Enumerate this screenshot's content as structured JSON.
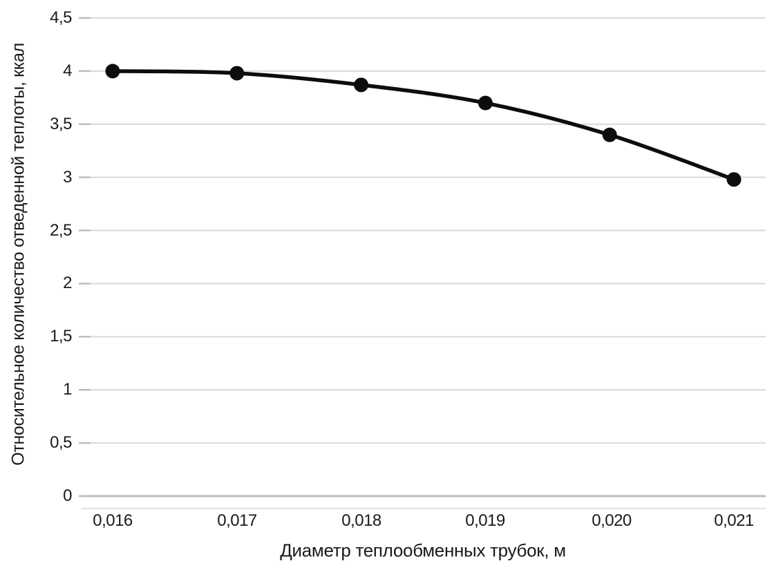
{
  "chart_data": {
    "type": "line",
    "title": "",
    "categories": [
      "0,016",
      "0,017",
      "0,018",
      "0,019",
      "0,020",
      "0,021"
    ],
    "x_values": [
      0.016,
      0.017,
      0.018,
      0.019,
      0.02,
      0.021
    ],
    "values": [
      4.0,
      3.98,
      3.87,
      3.7,
      3.4,
      2.98
    ],
    "xlabel": "Диаметр теплообменных трубок, м",
    "ylabel": "Относительное количество отведенной теплоты, ккал",
    "ylim": [
      0,
      4.5
    ],
    "ytick_step": 0.5,
    "ytick_labels_top_to_bottom": [
      "4,5",
      "4",
      "3,5",
      "3",
      "2,5",
      "2",
      "1,5",
      "1",
      "0,5",
      "0"
    ],
    "grid": "horizontal",
    "legend": "none",
    "marker": "filled-circle",
    "colors": {
      "line": "#0d0d0d",
      "marker": "#0d0d0d",
      "gridline": "#d9d9d9",
      "zero_gridline": "#bdbdbd",
      "axis_line": "#d9d9d9",
      "tick_mark": "#bdbdbd",
      "text": "#1a1a1a",
      "background": "#ffffff"
    }
  }
}
